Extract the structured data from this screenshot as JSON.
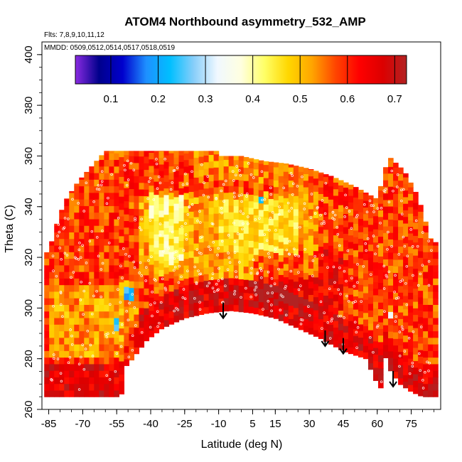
{
  "chart_data": {
    "type": "heatmap",
    "title": "ATOM4 Northbound asymmetry_532_AMP",
    "flights_note": "Flts: 7,8,9,10,11,12",
    "dates_note": "MMDD: 0509,0512,0514,0517,0518,0519",
    "xlabel": "Latitude (deg N)",
    "ylabel": "Theta (C)",
    "xlim": [
      -88,
      88
    ],
    "ylim": [
      260,
      405
    ],
    "x_ticks": [
      -85,
      -70,
      -55,
      -40,
      -25,
      -10,
      5,
      15,
      30,
      45,
      60,
      75
    ],
    "y_ticks": [
      260,
      280,
      300,
      320,
      340,
      360,
      380,
      400
    ],
    "colorbar": {
      "range": [
        0.025,
        0.725
      ],
      "ticks": [
        0.1,
        0.2,
        0.3,
        0.4,
        0.5,
        0.6,
        0.7
      ],
      "colors": [
        "#8a2be2",
        "#00008b",
        "#0000cd",
        "#1e90ff",
        "#00bfff",
        "#87cefa",
        "#f0f8ff",
        "#ffffe0",
        "#ffff66",
        "#ffd700",
        "#ffa500",
        "#ff4500",
        "#ff0000",
        "#dc0000",
        "#b22222"
      ]
    },
    "coverage": {
      "upper_boundary": [
        [
          -85,
          322
        ],
        [
          -82,
          332
        ],
        [
          -78,
          342
        ],
        [
          -72,
          350
        ],
        [
          -65,
          357
        ],
        [
          -60,
          362
        ],
        [
          -50,
          362
        ],
        [
          -40,
          362
        ],
        [
          -30,
          362
        ],
        [
          -20,
          362
        ],
        [
          -11,
          362
        ],
        [
          -11,
          360
        ],
        [
          0,
          360
        ],
        [
          10,
          358
        ],
        [
          20,
          357
        ],
        [
          30,
          355
        ],
        [
          40,
          352
        ],
        [
          50,
          348
        ],
        [
          60,
          343
        ],
        [
          65,
          360
        ],
        [
          72,
          354
        ],
        [
          78,
          344
        ],
        [
          84,
          326
        ]
      ],
      "lower_boundary": [
        [
          -84,
          265
        ],
        [
          -70,
          265
        ],
        [
          -55,
          265
        ],
        [
          -53,
          265
        ],
        [
          -52,
          276
        ],
        [
          -48,
          280
        ],
        [
          -42,
          287
        ],
        [
          -35,
          292
        ],
        [
          -25,
          296
        ],
        [
          -15,
          298
        ],
        [
          -5,
          299
        ],
        [
          5,
          298
        ],
        [
          15,
          296
        ],
        [
          25,
          292
        ],
        [
          35,
          288
        ],
        [
          45,
          283
        ],
        [
          55,
          280
        ],
        [
          60,
          270
        ],
        [
          62,
          268
        ],
        [
          63,
          282
        ],
        [
          66,
          275
        ],
        [
          70,
          270
        ],
        [
          75,
          267
        ],
        [
          80,
          265
        ],
        [
          84,
          265
        ]
      ]
    },
    "profile_markers": {
      "symbol": "arrow-down",
      "latitudes": [
        -8,
        37,
        45,
        67
      ],
      "theta_head": [
        296,
        285,
        282,
        269
      ]
    }
  }
}
